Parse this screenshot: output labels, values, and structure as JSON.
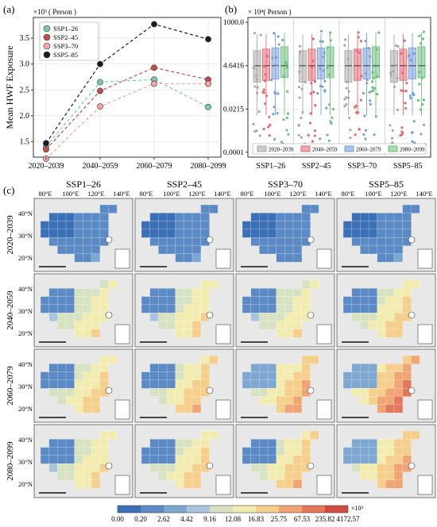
{
  "panels": {
    "a": "(a)",
    "b": "(b)",
    "c": "(c)"
  },
  "chart_data": [
    {
      "type": "line",
      "panel": "(a)",
      "ylabel": "Mean HWF Exposure",
      "multiplier_label": "×10³ ( Person )",
      "categories": [
        "2020–2039",
        "2040–2059",
        "2060–2079",
        "2080–2099"
      ],
      "ylim": [
        1.2,
        3.9
      ],
      "yticks": [
        "1.5",
        "2.0",
        "2.5",
        "3.0",
        "3.5"
      ],
      "ytick_values": [
        1.5,
        2.0,
        2.5,
        3.0,
        3.5
      ],
      "series": [
        {
          "name": "SSP1–26",
          "color": "#7fc8b4",
          "values": [
            1.4,
            2.65,
            2.7,
            2.17
          ]
        },
        {
          "name": "SSP2–45",
          "color": "#c0504d",
          "values": [
            1.35,
            2.48,
            2.93,
            2.7
          ]
        },
        {
          "name": "SSP3–70",
          "color": "#f2a7a7",
          "values": [
            1.17,
            2.18,
            2.62,
            2.62
          ]
        },
        {
          "name": "SSP5–85",
          "color": "#1a1a2e",
          "values": [
            1.47,
            3.0,
            3.77,
            3.48
          ]
        }
      ],
      "legend_position": "top-left",
      "grid": true
    },
    {
      "type": "box",
      "panel": "(b)",
      "multiplier_label": "× 10⁴( Person )",
      "y_scale": "log",
      "yticks": [
        "0.0001",
        "0.0215",
        "4.6416",
        "1000.0"
      ],
      "ytick_values": [
        0.0001,
        0.0215,
        4.6416,
        1000.0
      ],
      "categories": [
        "SSP1–26",
        "SSP2–45",
        "SSP3–70",
        "SSP5–85"
      ],
      "series": [
        {
          "name": "2020–2039",
          "color": "#a9a9a9"
        },
        {
          "name": "2040–2059",
          "color": "#e06c75"
        },
        {
          "name": "2060–2079",
          "color": "#7a9fd8"
        },
        {
          "name": "2080–2099",
          "color": "#6fbf7f"
        }
      ],
      "legend_position": "bottom",
      "grid": true
    }
  ],
  "maps": {
    "scenarios": [
      "SSP1–26",
      "SSP2–45",
      "SSP3–70",
      "SSP5–85"
    ],
    "periods": [
      "2020–2039",
      "2040–2059",
      "2060–2079",
      "2080–2099"
    ],
    "lon_labels": [
      "80°E",
      "100°E",
      "120°E",
      "140°E"
    ],
    "lat_labels": [
      "40°N",
      "30°N",
      "20°N"
    ],
    "colorbar": {
      "ticks": [
        "0.00",
        "0.20",
        "2.62",
        "4.42",
        "9.16",
        "12.08",
        "16.83",
        "25.75",
        "67.53",
        "235.82",
        "4172.57"
      ],
      "unit": "×10³",
      "colors": [
        "#3b6fb6",
        "#5b8ac4",
        "#7ea7d2",
        "#a9c4dc",
        "#d6e2c2",
        "#f3ecb0",
        "#f6cf8c",
        "#f0a674",
        "#e4785c",
        "#cf4b43"
      ]
    },
    "intensity": [
      [
        0.15,
        0.15,
        0.1,
        0.15
      ],
      [
        0.55,
        0.58,
        0.55,
        0.62
      ],
      [
        0.62,
        0.65,
        0.7,
        0.8
      ],
      [
        0.58,
        0.62,
        0.65,
        0.72
      ]
    ]
  }
}
